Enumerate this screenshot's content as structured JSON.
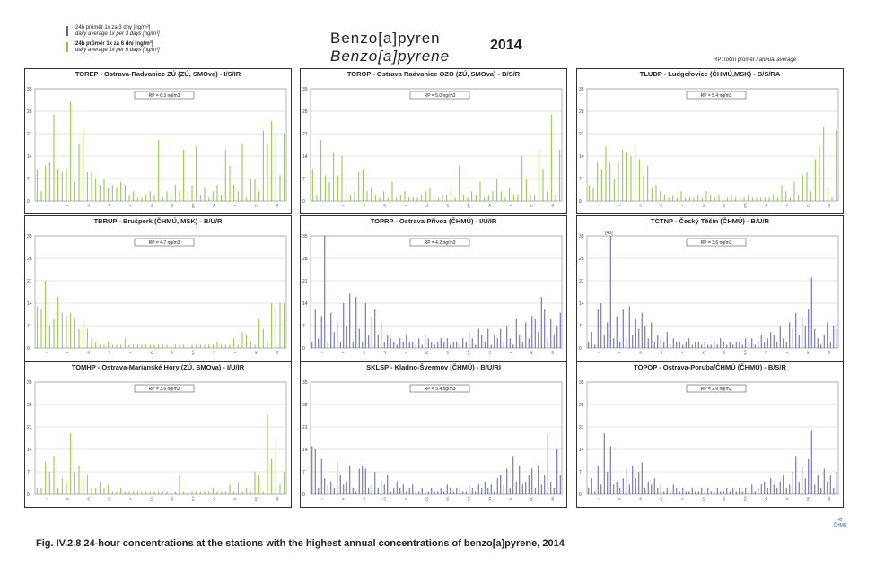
{
  "legend": {
    "blue": {
      "cz": "24h průměr 1x za 3 dny [ng/m³]",
      "en": "daily average 1x per 3 days [ng/m³]",
      "color": "#5b5fae"
    },
    "green": {
      "cz": "24h průměr 1x za 6 dní [ng/m³]",
      "en": "daily average 1x per 6 days [ng/m³]",
      "color": "#8cc63f"
    }
  },
  "header": {
    "title_cz": "Benzo[a]pyren",
    "title_en": "Benzo[a]pyrene",
    "year": "2014",
    "rp_note_cz": "RP: roční průměr / ",
    "rp_note_en": "annual average"
  },
  "caption": "Fig. IV.2.8  24-hour concentrations at the stations with the highest annual concentrations of benzo[a]pyrene, 2014",
  "logo_text": "ČHMÚ",
  "chart_data": [
    {
      "type": "bar",
      "title": "TOREP - Ostrava-Radvanice ZÚ (ZÚ, SMOva) - I/S/IR",
      "rp_label": "RP = 6.3 ng/m3",
      "series_color": "#8cc63f",
      "yticks": [
        "0",
        "7",
        "14",
        "21",
        "28",
        "35"
      ],
      "ylim": [
        0,
        35
      ],
      "months": [
        "I",
        "II",
        "III",
        "IV",
        "V",
        "VI",
        "VII",
        "VIII",
        "IX",
        "X",
        "XI",
        "XII"
      ],
      "values": [
        10,
        3,
        11,
        12,
        27,
        10,
        9,
        10,
        31,
        6,
        18,
        22,
        9,
        9,
        7,
        5,
        7,
        4,
        5,
        4,
        6,
        5,
        2,
        3,
        1,
        1,
        2,
        3,
        2,
        19,
        1,
        3,
        2,
        5,
        3,
        16,
        3,
        5,
        17,
        2,
        4,
        1,
        3,
        5,
        2,
        16,
        11,
        5,
        3,
        18,
        1,
        7,
        7,
        3,
        22,
        18,
        25,
        21,
        8,
        21
      ]
    },
    {
      "type": "bar",
      "title": "TOROP - Ostrava Radvanice OZO (ZÚ, SMOva) - B/S/R",
      "rp_label": "RP = 5.0 ng/m3",
      "series_color": "#8cc63f",
      "yticks": [
        "0",
        "7",
        "14",
        "21",
        "28",
        "35"
      ],
      "ylim": [
        0,
        35
      ],
      "months": [
        "I",
        "II",
        "III",
        "IV",
        "V",
        "VI",
        "VII",
        "VIII",
        "IX",
        "X",
        "XI",
        "XII"
      ],
      "values": [
        10,
        2,
        19,
        8,
        6,
        15,
        8,
        14,
        4,
        2,
        3,
        9,
        10,
        3,
        4,
        2,
        1,
        3,
        1,
        6,
        1,
        2,
        3,
        1,
        1,
        1,
        2,
        3,
        4,
        2,
        1,
        2,
        2,
        4,
        1,
        11,
        2,
        1,
        3,
        2,
        6,
        1,
        2,
        3,
        7,
        3,
        1,
        4,
        2,
        2,
        14,
        7,
        2,
        2,
        16,
        10,
        3,
        27,
        2,
        16
      ]
    },
    {
      "type": "bar",
      "title": "TLUDP - Ludgeřovice (ČHMÚ,MSK) - B/S/RA",
      "rp_label": "RP = 5.4 ng/m3",
      "series_color": "#8cc63f",
      "yticks": [
        "0",
        "7",
        "14",
        "21",
        "28",
        "35"
      ],
      "ylim": [
        0,
        35
      ],
      "months": [
        "I",
        "II",
        "III",
        "IV",
        "V",
        "VI",
        "VII",
        "VIII",
        "IX",
        "X",
        "XI",
        "XII"
      ],
      "values": [
        5,
        4,
        12,
        10,
        17,
        12,
        7,
        12,
        16,
        15,
        14,
        17,
        13,
        8,
        11,
        4,
        5,
        3,
        2,
        1,
        2,
        1,
        3,
        1,
        1,
        1,
        2,
        1,
        3,
        2,
        1,
        2,
        1,
        1,
        2,
        1,
        1,
        1,
        2,
        1,
        1,
        1,
        1,
        1,
        2,
        1,
        5,
        3,
        1,
        6,
        2,
        8,
        9,
        3,
        13,
        17,
        23,
        4,
        1,
        22
      ]
    },
    {
      "type": "bar",
      "title": "TBRUP - Brušperk (ČHMÚ, MSK) - B/U/R",
      "rp_label": "RP = 4.7 ng/m3",
      "series_color": "#8cc63f",
      "yticks": [
        "0",
        "7",
        "14",
        "21",
        "28",
        "35"
      ],
      "ylim": [
        0,
        35
      ],
      "months": [
        "I",
        "II",
        "III",
        "IV",
        "V",
        "VI",
        "VII",
        "VIII",
        "IX",
        "X",
        "XI",
        "XII"
      ],
      "values": [
        13,
        12,
        21,
        7,
        9,
        16,
        11,
        10,
        11,
        9,
        6,
        8,
        6,
        3,
        2,
        1,
        1,
        2,
        1,
        1,
        1,
        3,
        1,
        1,
        1,
        1,
        1,
        1,
        1,
        1,
        1,
        1,
        1,
        1,
        1,
        1,
        1,
        1,
        1,
        1,
        1,
        1,
        1,
        2,
        1,
        1,
        1,
        3,
        1,
        5,
        4,
        2,
        1,
        9,
        6,
        2,
        14,
        13,
        14,
        14
      ]
    },
    {
      "type": "bar",
      "title": "TOPRP - Ostrava-Přívoz (ČHMÚ) - I/U/IR",
      "rp_label": "RP = 4.2 ng/m3",
      "series_color": "#5b5fae",
      "yticks": [
        "0",
        "7",
        "14",
        "21",
        "28",
        "35"
      ],
      "ylim": [
        0,
        35
      ],
      "months": [
        "I",
        "II",
        "III",
        "IV",
        "V",
        "VI",
        "VII",
        "VIII",
        "IX",
        "X",
        "XI",
        "XII"
      ],
      "values": [
        2,
        12,
        3,
        10,
        35,
        2,
        11,
        5,
        8,
        2,
        14,
        7,
        17,
        2,
        16,
        6,
        2,
        14,
        4,
        10,
        12,
        4,
        8,
        2,
        4,
        3,
        2,
        1,
        3,
        2,
        4,
        2,
        2,
        1,
        3,
        1,
        4,
        3,
        2,
        1,
        2,
        3,
        2,
        3,
        1,
        2,
        2,
        1,
        3,
        2,
        5,
        3,
        1,
        6,
        4,
        2,
        6,
        1,
        4,
        3,
        6,
        2,
        7,
        3,
        1,
        9,
        4,
        2,
        8,
        3,
        10,
        9,
        5,
        16,
        12,
        3,
        9,
        4,
        7,
        11
      ]
    },
    {
      "type": "bar",
      "title": "TCTNP - Český Těšín (ČHMÚ) - B/U/R",
      "rp_label": "RP = 3.6 ng/m3",
      "series_color": "#5b5fae",
      "peak_label": "[40]",
      "yticks": [
        "0",
        "7",
        "14",
        "21",
        "28",
        "35"
      ],
      "ylim": [
        0,
        35
      ],
      "months": [
        "I",
        "II",
        "III",
        "IV",
        "V",
        "VI",
        "VII",
        "VIII",
        "IX",
        "X",
        "XI",
        "XII"
      ],
      "values": [
        2,
        5,
        1,
        12,
        14,
        4,
        8,
        35,
        3,
        10,
        2,
        12,
        3,
        13,
        4,
        9,
        6,
        11,
        7,
        3,
        8,
        2,
        4,
        3,
        2,
        5,
        1,
        3,
        2,
        2,
        1,
        2,
        3,
        1,
        2,
        2,
        1,
        2,
        1,
        1,
        2,
        1,
        3,
        2,
        1,
        2,
        1,
        2,
        2,
        1,
        3,
        2,
        3,
        1,
        2,
        4,
        2,
        3,
        5,
        4,
        2,
        7,
        3,
        2,
        8,
        6,
        11,
        4,
        10,
        7,
        12,
        22,
        6,
        3,
        1,
        4,
        8,
        2,
        7,
        6
      ]
    },
    {
      "type": "bar",
      "title": "TOMHP - Ostrava-Mariánské Hory (ZÚ, SMOva) - I/U/IR",
      "rp_label": "RP = 3.6 ng/m3",
      "series_color": "#8cc63f",
      "yticks": [
        "0",
        "7",
        "14",
        "21",
        "28",
        "35"
      ],
      "ylim": [
        0,
        35
      ],
      "months": [
        "I",
        "II",
        "III",
        "IV",
        "V",
        "VI",
        "VII",
        "VIII",
        "IX",
        "X",
        "XI",
        "XII"
      ],
      "values": [
        2,
        2,
        10,
        7,
        12,
        2,
        5,
        4,
        19,
        7,
        9,
        5,
        6,
        2,
        2,
        4,
        2,
        3,
        1,
        1,
        2,
        1,
        1,
        1,
        1,
        1,
        1,
        1,
        1,
        1,
        1,
        1,
        1,
        1,
        6,
        1,
        1,
        1,
        1,
        1,
        1,
        1,
        2,
        1,
        1,
        1,
        3,
        1,
        4,
        1,
        2,
        1,
        7,
        6,
        1,
        25,
        11,
        17,
        3,
        7
      ]
    },
    {
      "type": "bar",
      "title": "SKLSP - Kladno-Švermov (ČHMÚ) - B/U/RI",
      "rp_label": "RP = 3.4 ng/m3",
      "series_color": "#5b5fae",
      "yticks": [
        "0",
        "7",
        "14",
        "21",
        "28",
        "35"
      ],
      "ylim": [
        0,
        35
      ],
      "months": [
        "I",
        "II",
        "III",
        "IV",
        "V",
        "VI",
        "VII",
        "VIII",
        "IX",
        "X",
        "XI",
        "XII"
      ],
      "values": [
        15,
        14,
        2,
        11,
        5,
        3,
        4,
        2,
        10,
        6,
        3,
        4,
        9,
        2,
        1,
        8,
        9,
        8,
        2,
        3,
        7,
        2,
        4,
        3,
        6,
        1,
        2,
        4,
        2,
        3,
        1,
        2,
        3,
        1,
        1,
        2,
        1,
        1,
        2,
        1,
        1,
        2,
        1,
        3,
        2,
        1,
        2,
        2,
        1,
        1,
        3,
        2,
        1,
        3,
        2,
        4,
        2,
        3,
        1,
        5,
        6,
        3,
        8,
        2,
        12,
        4,
        9,
        3,
        4,
        6,
        8,
        2,
        9,
        3,
        6,
        19,
        4,
        2,
        14,
        6
      ]
    },
    {
      "type": "bar",
      "title": "TOPOP - Ostrava-Poruba/ČHMÚ (ČHMÚ) - B/S/R",
      "rp_label": "RP = 2.9 ng/m3",
      "series_color": "#5b5fae",
      "yticks": [
        "0",
        "7",
        "14",
        "21",
        "28",
        "35"
      ],
      "ylim": [
        0,
        35
      ],
      "months": [
        "I",
        "II",
        "III",
        "IV",
        "V",
        "VI",
        "VII",
        "VIII",
        "IX",
        "X",
        "XI",
        "XII"
      ],
      "values": [
        2,
        5,
        1,
        9,
        3,
        19,
        7,
        15,
        3,
        4,
        2,
        5,
        8,
        3,
        9,
        5,
        7,
        10,
        2,
        4,
        3,
        5,
        2,
        3,
        1,
        2,
        1,
        3,
        2,
        1,
        2,
        1,
        1,
        2,
        1,
        1,
        2,
        1,
        2,
        1,
        1,
        2,
        1,
        1,
        2,
        1,
        2,
        1,
        2,
        1,
        2,
        1,
        3,
        1,
        2,
        3,
        4,
        2,
        5,
        3,
        2,
        4,
        6,
        2,
        3,
        7,
        12,
        4,
        9,
        5,
        11,
        20,
        3,
        6,
        2,
        8,
        4,
        6,
        2,
        7
      ]
    }
  ]
}
